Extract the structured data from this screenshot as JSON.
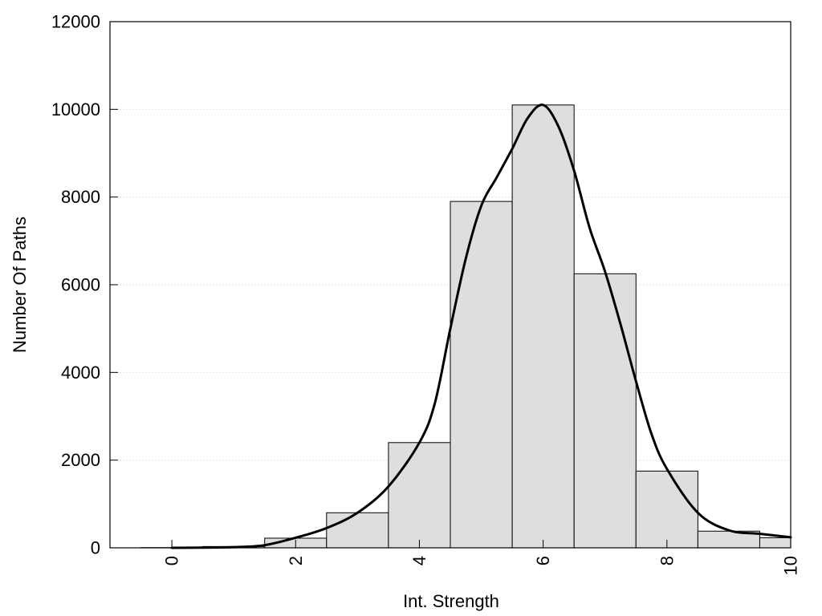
{
  "chart_data": {
    "type": "bar",
    "title": "",
    "xlabel": "Int. Strength",
    "ylabel": "Number Of Paths",
    "xlim": [
      -1,
      10
    ],
    "ylim": [
      0,
      12000
    ],
    "x_ticks": [
      0,
      2,
      4,
      6,
      8,
      10
    ],
    "y_ticks": [
      0,
      2000,
      4000,
      6000,
      8000,
      10000,
      12000
    ],
    "grid": "horizontal-dotted",
    "legend": "none",
    "bar_width": 1,
    "bars": {
      "x": [
        0,
        1,
        2,
        3,
        4,
        5,
        6,
        7,
        8,
        9,
        10
      ],
      "values": [
        5,
        30,
        220,
        800,
        2400,
        7900,
        10100,
        6250,
        1750,
        380,
        230
      ]
    },
    "curve": {
      "x": [
        0,
        0.5,
        1,
        1.5,
        2,
        2.5,
        3,
        3.5,
        4,
        4.25,
        4.5,
        4.75,
        5,
        5.25,
        5.5,
        5.75,
        6,
        6.25,
        6.5,
        6.75,
        7,
        7.25,
        7.5,
        7.75,
        8,
        8.5,
        9,
        9.5,
        10
      ],
      "values": [
        0,
        5,
        15,
        60,
        230,
        450,
        800,
        1400,
        2400,
        3300,
        5000,
        6600,
        7800,
        8450,
        9100,
        9800,
        10100,
        9600,
        8600,
        7300,
        6300,
        5100,
        3800,
        2600,
        1800,
        800,
        400,
        320,
        240
      ]
    },
    "colors": {
      "bar_fill": "#dedede",
      "bar_stroke": "#000000",
      "curve": "#000000",
      "grid": "#c8c8c8"
    }
  }
}
